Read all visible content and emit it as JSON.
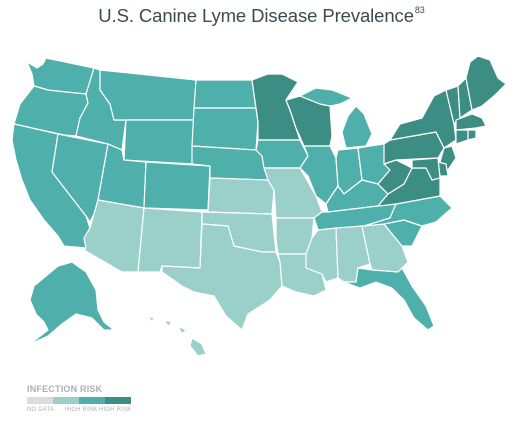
{
  "title": "U.S. Canine Lyme Disease Prevalence",
  "title_superscript": "83",
  "legend": {
    "title": "INFECTION RISK",
    "colors": [
      "#dcdcdc",
      "#9bcfca",
      "#4fafab",
      "#3c8e84"
    ],
    "labels": {
      "no_data": "NO DATA",
      "high_risk": "HIGH RISK",
      "highest_risk": "HIGH RISK"
    }
  },
  "colors": {
    "no_data": "#dcdcdc",
    "low": "#9bcfca",
    "medium": "#4fafab",
    "high": "#3c8e84",
    "border": "#ffffff"
  },
  "states": {
    "WA": "medium",
    "OR": "medium",
    "CA": "medium",
    "NV": "medium",
    "ID": "medium",
    "MT": "medium",
    "WY": "medium",
    "UT": "medium",
    "CO": "medium",
    "AZ": "low",
    "NM": "low",
    "ND": "medium",
    "SD": "medium",
    "NE": "medium",
    "KS": "low",
    "OK": "low",
    "TX": "low",
    "MN": "high",
    "IA": "medium",
    "MO": "low",
    "AR": "low",
    "LA": "low",
    "WI": "high",
    "IL": "medium",
    "MI": "medium",
    "IN": "medium",
    "OH": "medium",
    "KY": "medium",
    "TN": "medium",
    "MS": "low",
    "AL": "low",
    "GA": "low",
    "FL": "medium",
    "SC": "medium",
    "NC": "medium",
    "VA": "high",
    "WV": "high",
    "PA": "high",
    "NY": "high",
    "VT": "high",
    "NH": "high",
    "ME": "high",
    "MA": "high",
    "CT": "high",
    "RI": "high",
    "NJ": "high",
    "DE": "high",
    "MD": "high",
    "AK": "medium",
    "HI": "low"
  }
}
